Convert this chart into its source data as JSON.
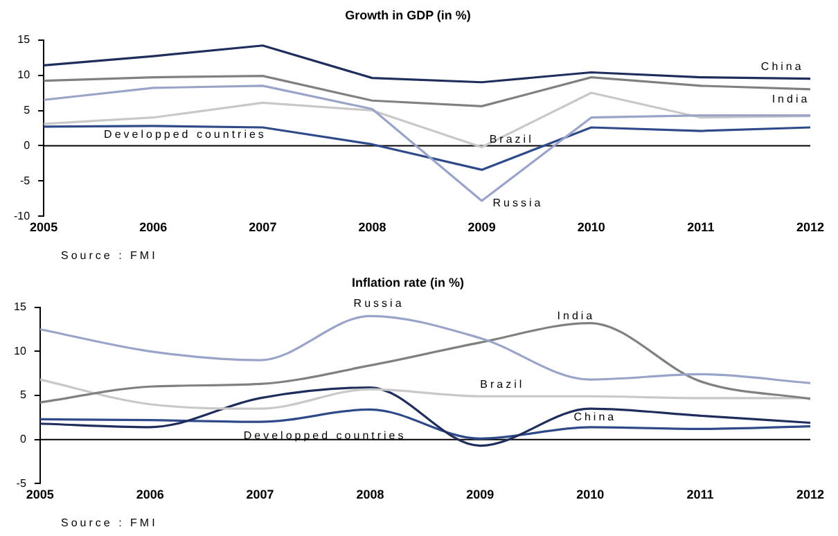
{
  "chart_data": [
    {
      "type": "line",
      "title": "Growth in GDP (in %)",
      "x": [
        2005,
        2006,
        2007,
        2008,
        2009,
        2010,
        2011,
        2012
      ],
      "xlim": [
        2005,
        2012
      ],
      "xticks": [
        2005,
        2006,
        2007,
        2008,
        2009,
        2010,
        2011,
        2012
      ],
      "ylim": [
        -10,
        15
      ],
      "yticks": [
        -10,
        -5,
        0,
        5,
        10,
        15
      ],
      "grid": false,
      "ref_lines": [
        {
          "axis": "y",
          "value": 0,
          "color": "#000000"
        }
      ],
      "legend": false,
      "marker": "none",
      "line_style": "solid",
      "annotations": [
        "Source : FMI"
      ],
      "series": [
        {
          "name": "China",
          "color": "#1f2d5c",
          "values": [
            11.4,
            12.7,
            14.2,
            9.6,
            9.0,
            10.4,
            9.7,
            9.5
          ]
        },
        {
          "name": "India",
          "color": "#808080",
          "values": [
            9.2,
            9.7,
            9.9,
            6.4,
            5.6,
            9.7,
            8.5,
            8.0
          ]
        },
        {
          "name": "Russia",
          "color": "#9aa3c8",
          "values": [
            6.5,
            8.2,
            8.5,
            5.2,
            -7.8,
            4.0,
            4.3,
            4.3
          ]
        },
        {
          "name": "Brazil",
          "color": "#c8c8c8",
          "values": [
            3.1,
            4.0,
            6.1,
            5.0,
            -0.2,
            7.5,
            4.0,
            4.2
          ]
        },
        {
          "name": "Developped countries",
          "color": "#2e4a8a",
          "values": [
            2.7,
            2.8,
            2.6,
            0.2,
            -3.4,
            2.6,
            2.1,
            2.6
          ]
        }
      ]
    },
    {
      "type": "line",
      "title": "Inflation rate (in %)",
      "x": [
        2005,
        2006,
        2007,
        2008,
        2009,
        2010,
        2011,
        2012
      ],
      "xlim": [
        2005,
        2012
      ],
      "xticks": [
        2005,
        2006,
        2007,
        2008,
        2009,
        2010,
        2011,
        2012
      ],
      "ylim": [
        -5,
        15
      ],
      "yticks": [
        -5,
        0,
        5,
        10,
        15
      ],
      "grid": false,
      "ref_lines": [
        {
          "axis": "y",
          "value": 0,
          "color": "#000000"
        }
      ],
      "legend": false,
      "marker": "none",
      "line_style": "solid",
      "annotations": [
        "Source : FMI"
      ],
      "series": [
        {
          "name": "Russia",
          "color": "#9aa3c8",
          "values": [
            12.5,
            10.0,
            9.0,
            14.0,
            11.5,
            6.8,
            7.4,
            6.4
          ]
        },
        {
          "name": "India",
          "color": "#808080",
          "values": [
            4.2,
            6.0,
            6.3,
            8.4,
            11.0,
            13.2,
            6.6,
            4.6
          ]
        },
        {
          "name": "Brazil",
          "color": "#c8c8c8",
          "values": [
            6.8,
            4.0,
            3.5,
            5.7,
            4.9,
            4.9,
            4.7,
            4.7
          ]
        },
        {
          "name": "China",
          "color": "#1f2d5c",
          "values": [
            1.8,
            1.4,
            4.7,
            5.9,
            -0.7,
            3.5,
            2.7,
            1.9
          ]
        },
        {
          "name": "Developped countries",
          "color": "#2e4a8a",
          "values": [
            2.3,
            2.2,
            2.0,
            3.4,
            0.1,
            1.4,
            1.2,
            1.5
          ]
        }
      ]
    }
  ]
}
